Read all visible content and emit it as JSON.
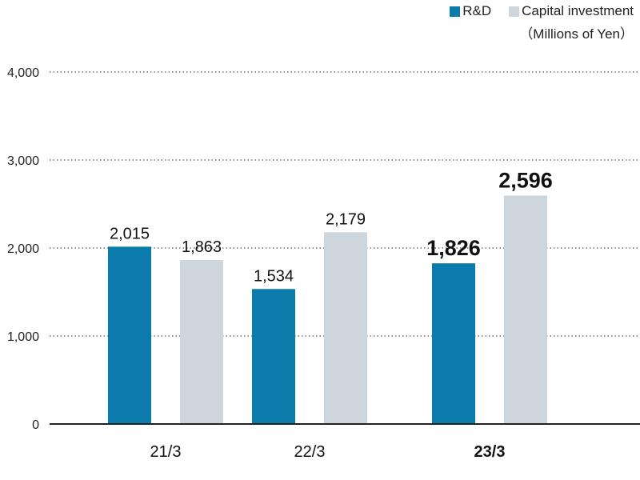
{
  "legend": {
    "items": [
      {
        "label": "R&D",
        "color": "#0b7bab"
      },
      {
        "label": "Capital investment",
        "color": "#cdd6dc"
      }
    ],
    "unit": "（Millions of Yen）"
  },
  "chart_data": {
    "type": "bar",
    "title": "",
    "xlabel": "",
    "ylabel": "",
    "categories": [
      "21/3",
      "22/3",
      "23/3"
    ],
    "highlight_category": "23/3",
    "series": [
      {
        "name": "R&D",
        "values": [
          2015,
          1534,
          1826
        ],
        "value_labels": [
          "2,015",
          "1,534",
          "1,826"
        ],
        "color": "#0b7bab"
      },
      {
        "name": "Capital investment",
        "values": [
          1863,
          2179,
          2596
        ],
        "value_labels": [
          "1,863",
          "2,179",
          "2,596"
        ],
        "color": "#cdd6dc"
      }
    ],
    "ylim": [
      0,
      4000
    ],
    "yticks": [
      0,
      1000,
      2000,
      3000,
      4000
    ],
    "ytick_labels": [
      "0",
      "1,000",
      "2,000",
      "3,000",
      "4,000"
    ],
    "grid": true,
    "legend_position": "top-right"
  }
}
